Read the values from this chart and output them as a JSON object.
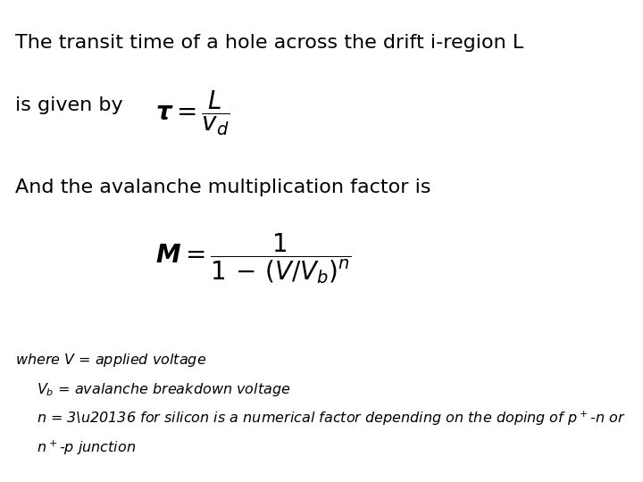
{
  "background_color": "#ffffff",
  "text1": "The transit time of a hole across the drift i-region L",
  "text2": "is given by",
  "formula1": "$\\boldsymbol{\\tau} = \\dfrac{L}{v_d}$",
  "text3": "And the avalanche multiplication factor is",
  "formula2": "$\\boldsymbol{M} = \\dfrac{1}{1\\,-\\,(V/V_b)^n}$",
  "figsize": [
    7.2,
    5.4
  ],
  "dpi": 100
}
